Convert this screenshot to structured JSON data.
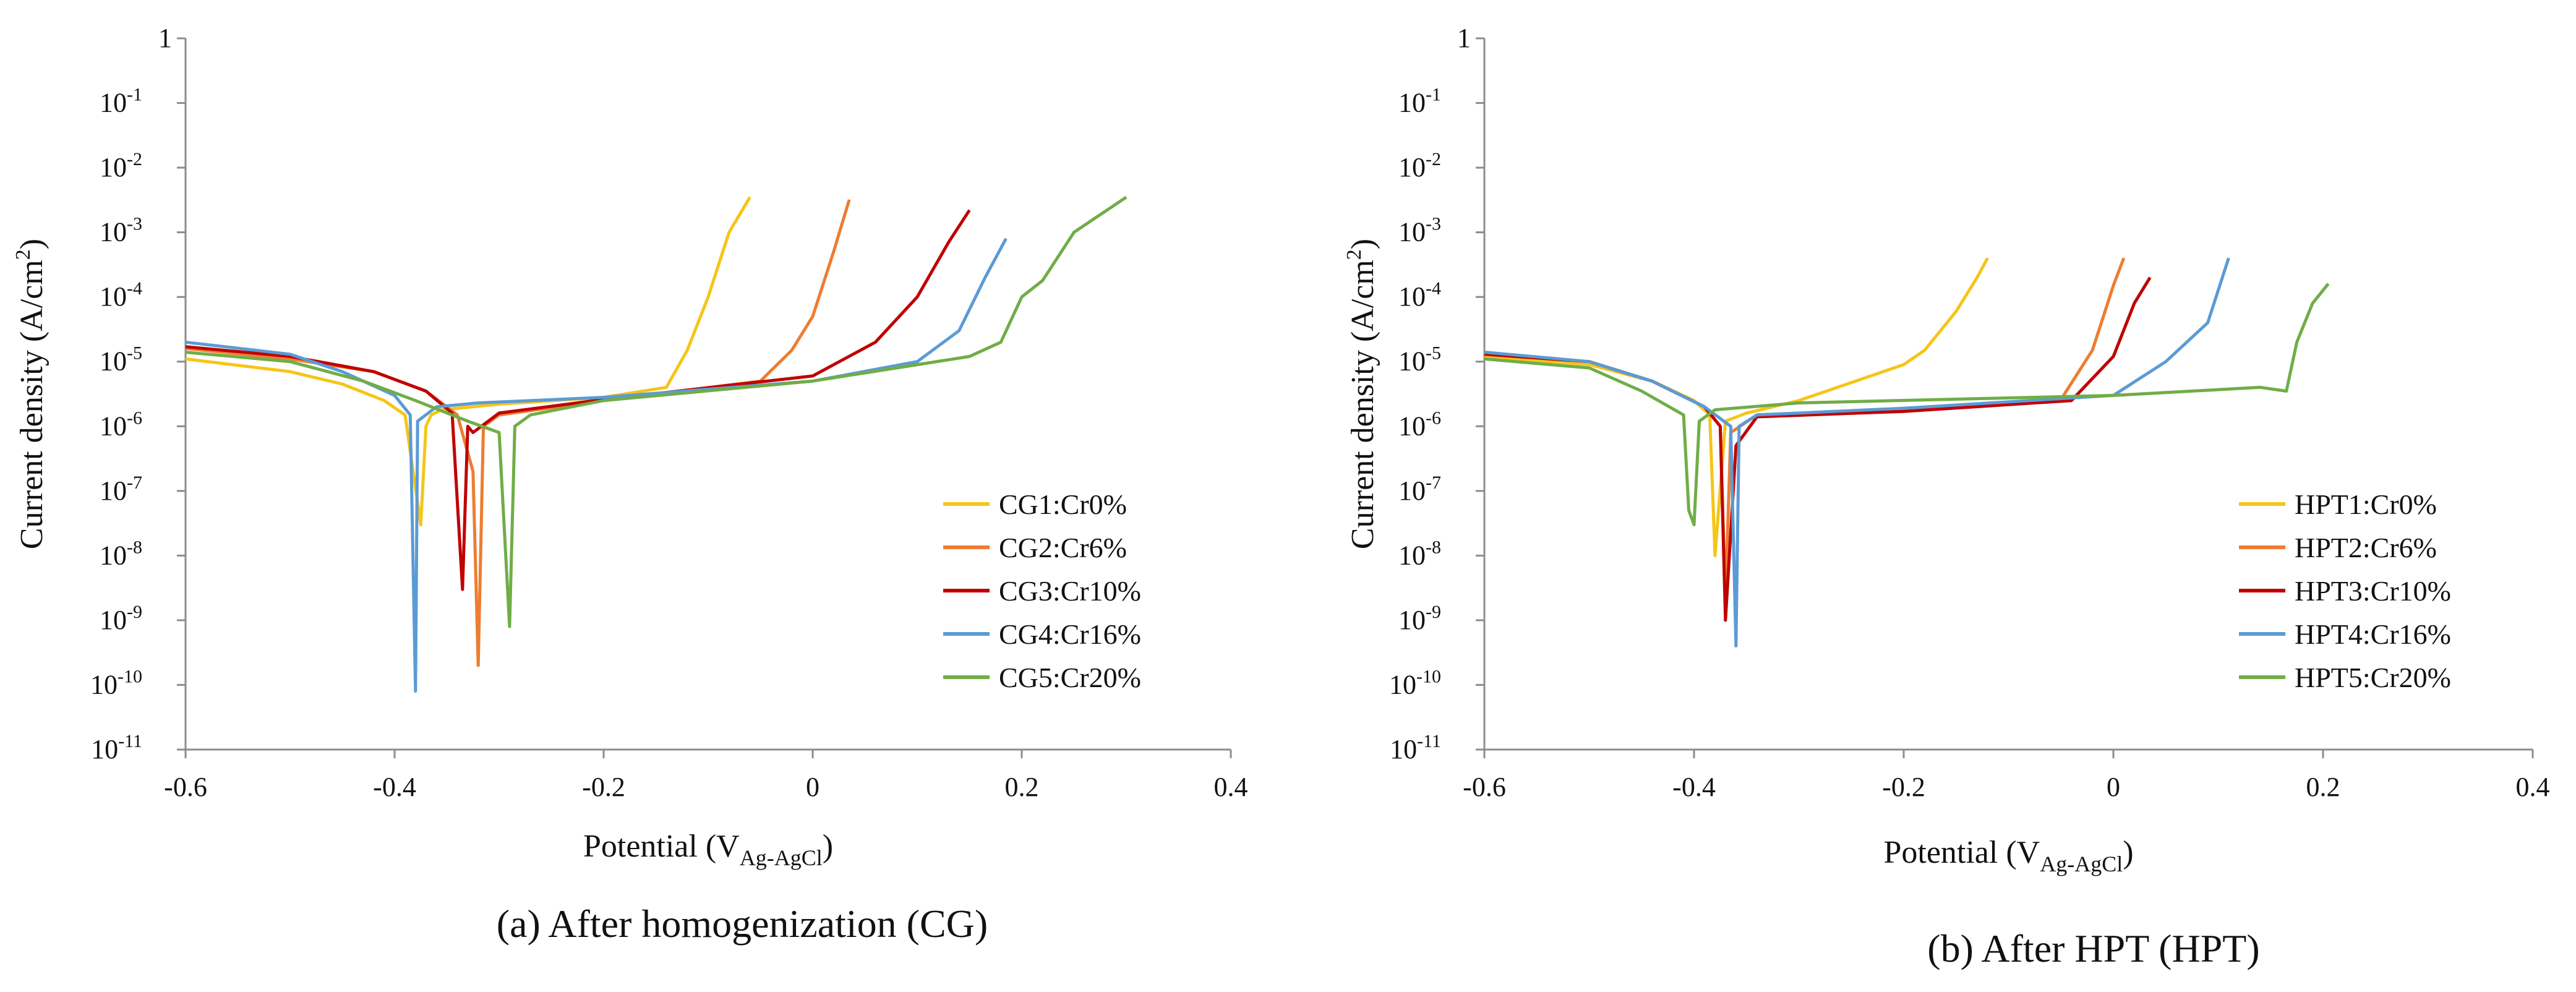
{
  "chart_data": [
    {
      "type": "line",
      "panel": "a",
      "caption": "(a) After homogenization (CG)",
      "xlabel": "Potential (V",
      "xlabel_sub": "Ag-AgCl",
      "xlabel_tail": ")",
      "ylabel": "Current density (A/cm",
      "ylabel_sup": "2",
      "ylabel_tail": ")",
      "xlim": [
        -0.6,
        0.4
      ],
      "ylim_log10": [
        -11,
        0
      ],
      "x_scale": "linear",
      "y_scale": "log",
      "grid": false,
      "legend_position": "bottom-right",
      "x_ticks": [
        {
          "v": -0.6,
          "label": "-0.6"
        },
        {
          "v": -0.4,
          "label": "-0.4"
        },
        {
          "v": -0.2,
          "label": "-0.2"
        },
        {
          "v": 0,
          "label": "0"
        },
        {
          "v": 0.2,
          "label": "0.2"
        },
        {
          "v": 0.4,
          "label": "0.4"
        }
      ],
      "y_ticks": [
        {
          "e": 0,
          "base": "1",
          "exp": ""
        },
        {
          "e": -1,
          "base": "10",
          "exp": "-1"
        },
        {
          "e": -2,
          "base": "10",
          "exp": "-2"
        },
        {
          "e": -3,
          "base": "10",
          "exp": "-3"
        },
        {
          "e": -4,
          "base": "10",
          "exp": "-4"
        },
        {
          "e": -5,
          "base": "10",
          "exp": "-5"
        },
        {
          "e": -6,
          "base": "10",
          "exp": "-6"
        },
        {
          "e": -7,
          "base": "10",
          "exp": "-7"
        },
        {
          "e": -8,
          "base": "10",
          "exp": "-8"
        },
        {
          "e": -9,
          "base": "10",
          "exp": "-9"
        },
        {
          "e": -10,
          "base": "10",
          "exp": "-10"
        },
        {
          "e": -11,
          "base": "10",
          "exp": "-11"
        }
      ],
      "series": [
        {
          "name": "CG1:Cr0%",
          "color": "#f5c518",
          "x": [
            -0.6,
            -0.5,
            -0.45,
            -0.41,
            -0.39,
            -0.375,
            -0.37,
            -0.365,
            -0.355,
            -0.3,
            -0.2,
            -0.14,
            -0.12,
            -0.1,
            -0.08,
            -0.06
          ],
          "y": [
            1.1e-05,
            7e-06,
            4.5e-06,
            2.5e-06,
            1.5e-06,
            3e-08,
            1e-06,
            1.5e-06,
            1.8e-06,
            2.2e-06,
            2.8e-06,
            4e-06,
            1.5e-05,
            0.0001,
            0.001,
            0.0035
          ]
        },
        {
          "name": "CG2:Cr6%",
          "color": "#ed7d31",
          "x": [
            -0.6,
            -0.5,
            -0.42,
            -0.37,
            -0.34,
            -0.325,
            -0.32,
            -0.315,
            -0.3,
            -0.2,
            -0.05,
            -0.02,
            0.0,
            0.02,
            0.035
          ],
          "y": [
            1.6e-05,
            1.1e-05,
            7e-06,
            3.5e-06,
            1.5e-06,
            2e-07,
            2e-10,
            1e-06,
            1.5e-06,
            2.5e-06,
            5e-06,
            1.5e-05,
            5e-05,
            0.0005,
            0.0032
          ]
        },
        {
          "name": "CG3:Cr10%",
          "color": "#c00000",
          "x": [
            -0.6,
            -0.5,
            -0.42,
            -0.37,
            -0.345,
            -0.335,
            -0.33,
            -0.325,
            -0.3,
            -0.2,
            0.0,
            0.06,
            0.1,
            0.13,
            0.15
          ],
          "y": [
            1.7e-05,
            1.2e-05,
            7e-06,
            3.5e-06,
            1.6e-06,
            3e-09,
            1e-06,
            8e-07,
            1.6e-06,
            2.6e-06,
            6e-06,
            2e-05,
            0.0001,
            0.0007,
            0.0022
          ]
        },
        {
          "name": "CG4:Cr16%",
          "color": "#5b9bd5",
          "x": [
            -0.6,
            -0.5,
            -0.45,
            -0.4,
            -0.385,
            -0.38,
            -0.378,
            -0.36,
            -0.32,
            -0.2,
            0.0,
            0.1,
            0.14,
            0.165,
            0.185
          ],
          "y": [
            2e-05,
            1.3e-05,
            7e-06,
            3e-06,
            1.5e-06,
            8e-11,
            1.2e-06,
            2e-06,
            2.3e-06,
            2.8e-06,
            5e-06,
            1e-05,
            3e-05,
            0.0002,
            0.0008
          ]
        },
        {
          "name": "CG5:Cr20%",
          "color": "#70ad47",
          "x": [
            -0.6,
            -0.5,
            -0.43,
            -0.38,
            -0.33,
            -0.3,
            -0.29,
            -0.285,
            -0.27,
            -0.2,
            0.0,
            0.15,
            0.18,
            0.2,
            0.22,
            0.25,
            0.3
          ],
          "y": [
            1.4e-05,
            1e-05,
            5e-06,
            2.5e-06,
            1.2e-06,
            8e-07,
            8e-10,
            1e-06,
            1.5e-06,
            2.5e-06,
            5e-06,
            1.2e-05,
            2e-05,
            0.0001,
            0.00018,
            0.001,
            0.0035
          ]
        }
      ]
    },
    {
      "type": "line",
      "panel": "b",
      "caption": "(b) After HPT (HPT)",
      "xlabel": "Potential (V",
      "xlabel_sub": "Ag-AgCl",
      "xlabel_tail": ")",
      "ylabel": "Current density (A/cm",
      "ylabel_sup": "2",
      "ylabel_tail": ")",
      "xlim": [
        -0.6,
        0.4
      ],
      "ylim_log10": [
        -11,
        0
      ],
      "x_scale": "linear",
      "y_scale": "log",
      "grid": false,
      "legend_position": "bottom-right",
      "x_ticks": [
        {
          "v": -0.6,
          "label": "-0.6"
        },
        {
          "v": -0.4,
          "label": "-0.4"
        },
        {
          "v": -0.2,
          "label": "-0.2"
        },
        {
          "v": 0,
          "label": "0"
        },
        {
          "v": 0.2,
          "label": "0.2"
        },
        {
          "v": 0.4,
          "label": "0.4"
        }
      ],
      "y_ticks": [
        {
          "e": 0,
          "base": "1",
          "exp": ""
        },
        {
          "e": -1,
          "base": "10",
          "exp": "-1"
        },
        {
          "e": -2,
          "base": "10",
          "exp": "-2"
        },
        {
          "e": -3,
          "base": "10",
          "exp": "-3"
        },
        {
          "e": -4,
          "base": "10",
          "exp": "-4"
        },
        {
          "e": -5,
          "base": "10",
          "exp": "-5"
        },
        {
          "e": -6,
          "base": "10",
          "exp": "-6"
        },
        {
          "e": -7,
          "base": "10",
          "exp": "-7"
        },
        {
          "e": -8,
          "base": "10",
          "exp": "-8"
        },
        {
          "e": -9,
          "base": "10",
          "exp": "-9"
        },
        {
          "e": -10,
          "base": "10",
          "exp": "-10"
        },
        {
          "e": -11,
          "base": "10",
          "exp": "-11"
        }
      ],
      "series": [
        {
          "name": "HPT1:Cr0%",
          "color": "#f5c518",
          "x": [
            -0.6,
            -0.5,
            -0.44,
            -0.4,
            -0.385,
            -0.38,
            -0.37,
            -0.35,
            -0.3,
            -0.2,
            -0.18,
            -0.15,
            -0.13,
            -0.12
          ],
          "y": [
            1.2e-05,
            9e-06,
            5e-06,
            2.5e-06,
            1.5e-06,
            1e-08,
            1.2e-06,
            1.6e-06,
            2.5e-06,
            9e-06,
            1.5e-05,
            6e-05,
            0.0002,
            0.0004
          ]
        },
        {
          "name": "HPT2:Cr6%",
          "color": "#ed7d31",
          "x": [
            -0.6,
            -0.5,
            -0.44,
            -0.39,
            -0.375,
            -0.37,
            -0.365,
            -0.34,
            -0.2,
            -0.05,
            -0.02,
            0.0,
            0.01
          ],
          "y": [
            1.3e-05,
            1e-05,
            5e-06,
            2e-06,
            1e-06,
            2e-09,
            8e-07,
            1.5e-06,
            1.8e-06,
            2.6e-06,
            1.5e-05,
            0.00015,
            0.0004
          ]
        },
        {
          "name": "HPT3:Cr10%",
          "color": "#c00000",
          "x": [
            -0.6,
            -0.5,
            -0.44,
            -0.39,
            -0.375,
            -0.37,
            -0.36,
            -0.34,
            -0.2,
            -0.04,
            0.0,
            0.02,
            0.035
          ],
          "y": [
            1.3e-05,
            1e-05,
            5e-06,
            2e-06,
            1e-06,
            1e-09,
            5e-07,
            1.4e-06,
            1.7e-06,
            2.5e-06,
            1.2e-05,
            8e-05,
            0.0002
          ]
        },
        {
          "name": "HPT4:Cr16%",
          "color": "#5b9bd5",
          "x": [
            -0.6,
            -0.5,
            -0.44,
            -0.39,
            -0.365,
            -0.36,
            -0.357,
            -0.34,
            -0.2,
            0.0,
            0.05,
            0.09,
            0.11
          ],
          "y": [
            1.4e-05,
            1e-05,
            5e-06,
            2e-06,
            1e-06,
            4e-10,
            1e-06,
            1.5e-06,
            1.9e-06,
            3e-06,
            1e-05,
            4e-05,
            0.0004
          ]
        },
        {
          "name": "HPT5:Cr20%",
          "color": "#70ad47",
          "x": [
            -0.6,
            -0.5,
            -0.45,
            -0.41,
            -0.405,
            -0.4,
            -0.395,
            -0.38,
            -0.3,
            0.0,
            0.14,
            0.165,
            0.175,
            0.19,
            0.205
          ],
          "y": [
            1.1e-05,
            8e-06,
            3.5e-06,
            1.5e-06,
            5e-08,
            3e-08,
            1.2e-06,
            1.8e-06,
            2.3e-06,
            3e-06,
            4e-06,
            3.5e-06,
            2e-05,
            8e-05,
            0.00016
          ]
        }
      ]
    }
  ]
}
